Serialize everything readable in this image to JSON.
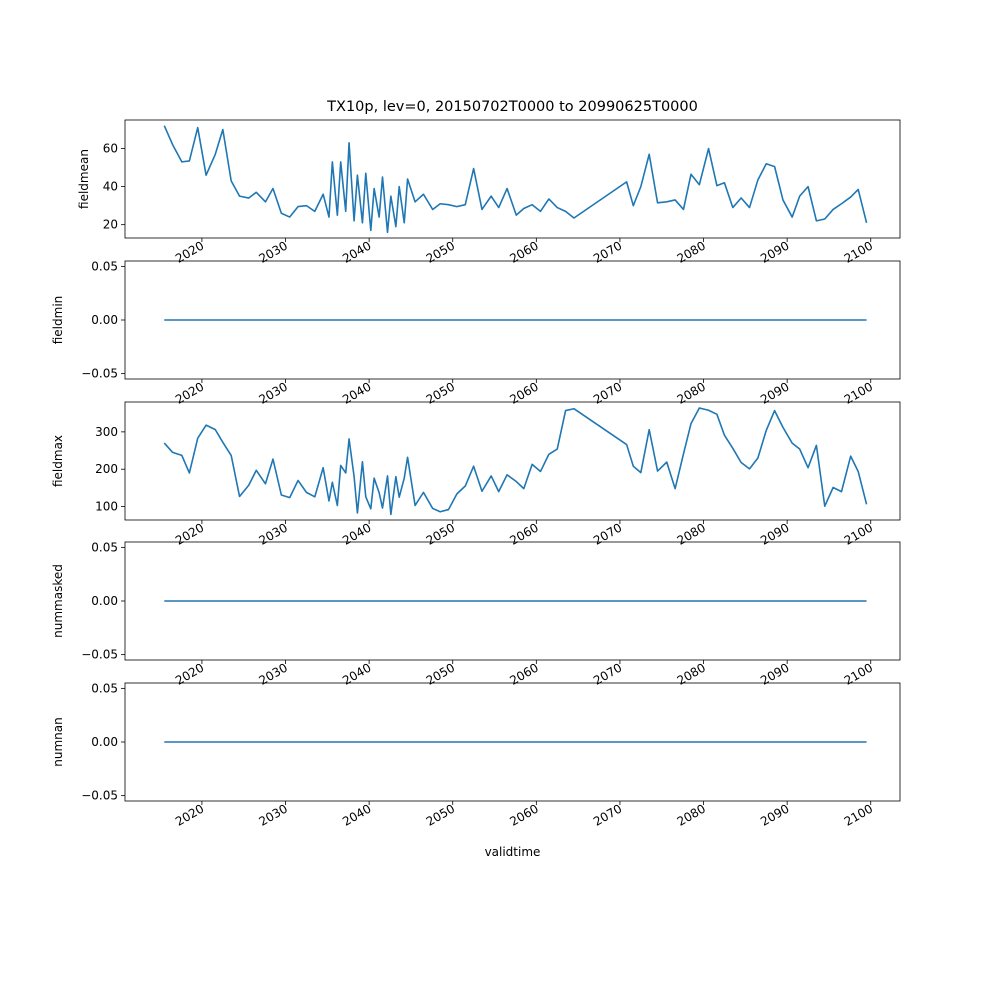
{
  "chart_data": {
    "type": "line",
    "title": "TX10p, lev=0, 20150702T0000 to 20990625T0000",
    "xlabel": "validtime",
    "x_ticks": [
      "2020",
      "2030",
      "2040",
      "2050",
      "2060",
      "2070",
      "2080",
      "2090",
      "2100"
    ],
    "xlim": [
      2010.8,
      2103.5
    ],
    "line_color": "#1f77b4",
    "grid": false,
    "panels": [
      {
        "ylabel": "fieldmean",
        "ylim": [
          13,
          75
        ],
        "y_ticks": [
          20,
          40,
          60
        ],
        "y_tick_labels": [
          "20",
          "40",
          "60"
        ],
        "x": [
          2015.5,
          2016.5,
          2017.6,
          2018.5,
          2019.5,
          2020.5,
          2021.6,
          2022.5,
          2023.5,
          2024.5,
          2025.6,
          2026.5,
          2027.6,
          2028.5,
          2029.5,
          2030.5,
          2031.5,
          2032.5,
          2033.5,
          2034.5,
          2035.2,
          2035.6,
          2036.2,
          2036.6,
          2037.2,
          2037.6,
          2038.2,
          2038.6,
          2039.2,
          2039.6,
          2040.2,
          2040.6,
          2041.2,
          2041.6,
          2042.2,
          2042.6,
          2043.2,
          2043.6,
          2044.2,
          2044.6,
          2045.5,
          2046.5,
          2047.6,
          2048.5,
          2049.5,
          2050.5,
          2051.5,
          2052.5,
          2053.5,
          2054.6,
          2055.5,
          2056.5,
          2057.6,
          2058.5,
          2059.5,
          2060.5,
          2061.5,
          2062.5,
          2063.5,
          2064.5,
          2070.8,
          2071.6,
          2072.5,
          2073.5,
          2074.5,
          2075.6,
          2076.6,
          2077.6,
          2078.5,
          2079.5,
          2080.6,
          2081.6,
          2082.5,
          2083.5,
          2084.5,
          2085.5,
          2086.5,
          2087.5,
          2088.5,
          2089.5,
          2090.6,
          2091.5,
          2092.5,
          2093.5,
          2094.5,
          2095.5,
          2096.5,
          2097.6,
          2098.5,
          2099.5
        ],
        "y": [
          72,
          62,
          53,
          53.5,
          71,
          46,
          57,
          70,
          43,
          35,
          34,
          37,
          32,
          39,
          26,
          24,
          29.5,
          30,
          27,
          36,
          24,
          53,
          25,
          53,
          27,
          63,
          22,
          46,
          21,
          47,
          17,
          39,
          24,
          45,
          16,
          35,
          19,
          40,
          21,
          44,
          32,
          36,
          28,
          31,
          30.5,
          29.5,
          30.5,
          49.5,
          28,
          35,
          29,
          39,
          25,
          28.5,
          30.5,
          27,
          33.5,
          29,
          27,
          23.5,
          42.5,
          30,
          40,
          57,
          31.5,
          32,
          33,
          28,
          46.5,
          41,
          60,
          40.5,
          42,
          29,
          34,
          29,
          43.5,
          52,
          50.5,
          33,
          24,
          35,
          40,
          22,
          23,
          28,
          31,
          34.5,
          38.5,
          21
        ]
      },
      {
        "ylabel": "fieldmin",
        "ylim": [
          -0.055,
          0.055
        ],
        "y_ticks": [
          -0.05,
          0.0,
          0.05
        ],
        "y_tick_labels": [
          "−0.05",
          "0.00",
          "0.05"
        ],
        "x": [
          2015.5,
          2099.5
        ],
        "y": [
          0,
          0
        ]
      },
      {
        "ylabel": "fieldmax",
        "ylim": [
          64,
          380
        ],
        "y_ticks": [
          100,
          200,
          300
        ],
        "y_tick_labels": [
          "100",
          "200",
          "300"
        ],
        "x": [
          2015.5,
          2016.5,
          2017.6,
          2018.5,
          2019.5,
          2020.5,
          2021.6,
          2022.5,
          2023.5,
          2024.5,
          2025.6,
          2026.5,
          2027.6,
          2028.5,
          2029.5,
          2030.5,
          2031.5,
          2032.5,
          2033.5,
          2034.5,
          2035.2,
          2035.6,
          2036.2,
          2036.6,
          2037.2,
          2037.6,
          2038.2,
          2038.6,
          2039.2,
          2039.6,
          2040.2,
          2040.6,
          2041.2,
          2041.6,
          2042.2,
          2042.6,
          2043.2,
          2043.6,
          2044.2,
          2044.6,
          2045.5,
          2046.5,
          2047.6,
          2048.5,
          2049.5,
          2050.5,
          2051.5,
          2052.5,
          2053.5,
          2054.6,
          2055.5,
          2056.5,
          2057.6,
          2058.5,
          2059.5,
          2060.5,
          2061.5,
          2062.5,
          2063.5,
          2064.5,
          2070.8,
          2071.6,
          2072.5,
          2073.5,
          2074.5,
          2075.6,
          2076.6,
          2077.6,
          2078.5,
          2079.5,
          2080.6,
          2081.6,
          2082.5,
          2083.5,
          2084.5,
          2085.5,
          2086.5,
          2087.5,
          2088.5,
          2089.5,
          2090.6,
          2091.5,
          2092.5,
          2093.5,
          2094.5,
          2095.5,
          2096.5,
          2097.6,
          2098.5,
          2099.5
        ],
        "y": [
          270,
          245,
          237,
          190,
          283,
          318,
          306,
          272,
          237,
          127,
          157,
          197,
          161,
          227,
          131,
          124,
          170,
          138,
          126,
          204,
          115,
          165,
          103,
          210,
          190,
          281,
          181,
          83,
          220,
          126,
          94,
          176,
          137,
          96,
          182,
          79,
          180,
          125,
          176,
          232,
          103,
          138,
          95,
          86,
          92,
          134,
          155,
          208,
          141,
          182,
          140,
          185,
          167,
          148,
          213,
          194,
          240,
          254,
          357,
          362,
          266,
          208,
          191,
          306,
          195,
          219,
          148,
          241,
          322,
          364,
          358,
          347,
          291,
          256,
          218,
          201,
          230,
          304,
          357,
          312,
          270,
          254,
          204,
          264,
          101,
          151,
          140,
          235,
          194,
          106
        ]
      },
      {
        "ylabel": "nummasked",
        "ylim": [
          -0.055,
          0.055
        ],
        "y_ticks": [
          -0.05,
          0.0,
          0.05
        ],
        "y_tick_labels": [
          "−0.05",
          "0.00",
          "0.05"
        ],
        "x": [
          2015.5,
          2099.5
        ],
        "y": [
          0,
          0
        ]
      },
      {
        "ylabel": "numnan",
        "ylim": [
          -0.055,
          0.055
        ],
        "y_ticks": [
          -0.05,
          0.0,
          0.05
        ],
        "y_tick_labels": [
          "−0.05",
          "0.00",
          "0.05"
        ],
        "x": [
          2015.5,
          2099.5
        ],
        "y": [
          0,
          0
        ]
      }
    ]
  }
}
